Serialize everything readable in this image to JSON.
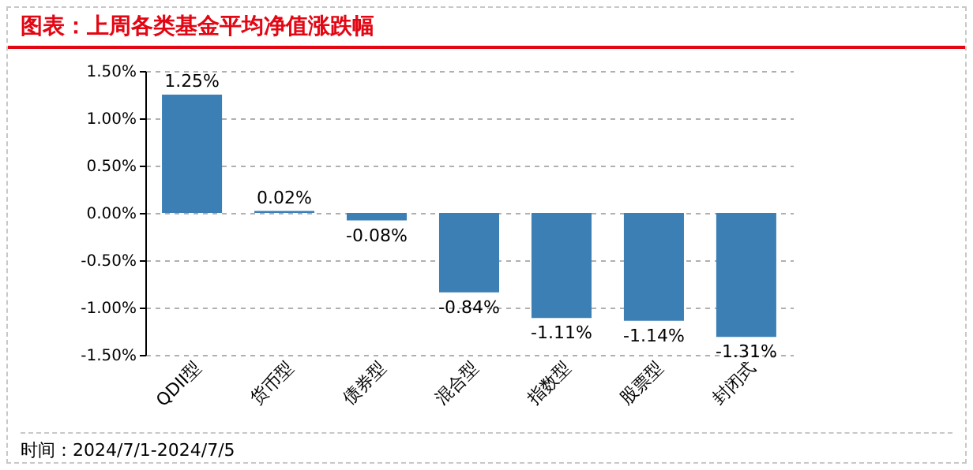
{
  "chart_data": {
    "type": "bar",
    "title": "图表：上周各类基金平均净值涨跌幅",
    "categories": [
      "QDII型",
      "货币型",
      "债券型",
      "混合型",
      "指数型",
      "股票型",
      "封闭式"
    ],
    "values": [
      1.25,
      0.02,
      -0.08,
      -0.84,
      -1.11,
      -1.14,
      -1.31
    ],
    "value_labels": [
      "1.25%",
      "0.02%",
      "-0.08%",
      "-0.84%",
      "-1.11%",
      "-1.14%",
      "-1.31%"
    ],
    "color": "#3c7fb5",
    "ylim": [
      -1.5,
      1.5
    ],
    "yticks": [
      {
        "value": -1.5,
        "label": "-1.50%"
      },
      {
        "value": -1.0,
        "label": "-1.00%"
      },
      {
        "value": -0.5,
        "label": "-0.50%"
      },
      {
        "value": 0,
        "label": "0.00%"
      },
      {
        "value": 0.5,
        "label": "0.50%"
      },
      {
        "value": 1.0,
        "label": "1.00%"
      },
      {
        "value": 1.5,
        "label": "1.50%"
      }
    ],
    "grid": "y",
    "annotations": [
      "时间：2024/7/1-2024/7/5"
    ]
  }
}
